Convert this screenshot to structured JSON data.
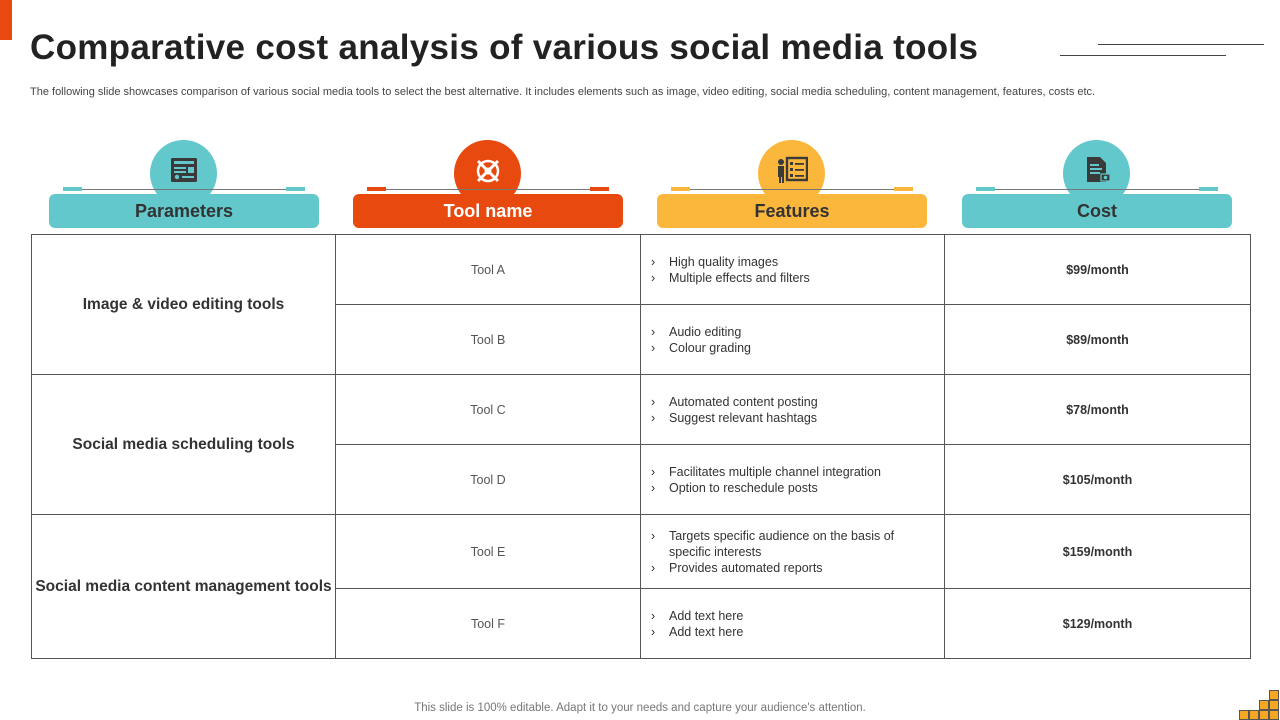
{
  "title": "Comparative cost analysis of various social media tools",
  "subtitle": "The following slide showcases comparison of various social media tools to select the best alternative. It includes elements such as image, video editing, social media scheduling, content management, features, costs etc.",
  "headers": [
    {
      "label": "Parameters",
      "icon": "dashboard-icon",
      "color": "#63c8cb",
      "text_color": "#333333"
    },
    {
      "label": "Tool name",
      "icon": "tools-icon",
      "color": "#e8490f",
      "text_color": "#ffffff"
    },
    {
      "label": "Features",
      "icon": "presentation-icon",
      "color": "#fbb73c",
      "text_color": "#333333"
    },
    {
      "label": "Cost",
      "icon": "invoice-icon",
      "color": "#63c8cb",
      "text_color": "#333333"
    }
  ],
  "groups": [
    {
      "parameter": "Image & video editing tools",
      "rows": [
        {
          "tool": "Tool A",
          "features": [
            "High quality images",
            "Multiple effects and filters"
          ],
          "cost": "$99/month"
        },
        {
          "tool": "Tool B",
          "features": [
            "Audio editing",
            "Colour grading"
          ],
          "cost": "$89/month"
        }
      ]
    },
    {
      "parameter": "Social media scheduling tools",
      "rows": [
        {
          "tool": "Tool C",
          "features": [
            "Automated content posting",
            "Suggest relevant hashtags"
          ],
          "cost": "$78/month"
        },
        {
          "tool": "Tool D",
          "features": [
            "Facilitates multiple channel integration",
            "Option to reschedule posts"
          ],
          "cost": "$105/month"
        }
      ]
    },
    {
      "parameter": "Social media content management tools",
      "rows": [
        {
          "tool": "Tool E",
          "features": [
            "Targets specific audience on the basis of specific interests",
            "Provides automated reports"
          ],
          "cost": "$159/month"
        },
        {
          "tool": "Tool F",
          "features": [
            "Add text here",
            "Add text here"
          ],
          "cost": "$129/month"
        }
      ]
    }
  ],
  "footer": "This slide is 100% editable. Adapt it to your needs and capture your audience's attention.",
  "colors": {
    "accent": "#e8490f",
    "teal": "#63c8cb",
    "yellow": "#fbb73c"
  }
}
